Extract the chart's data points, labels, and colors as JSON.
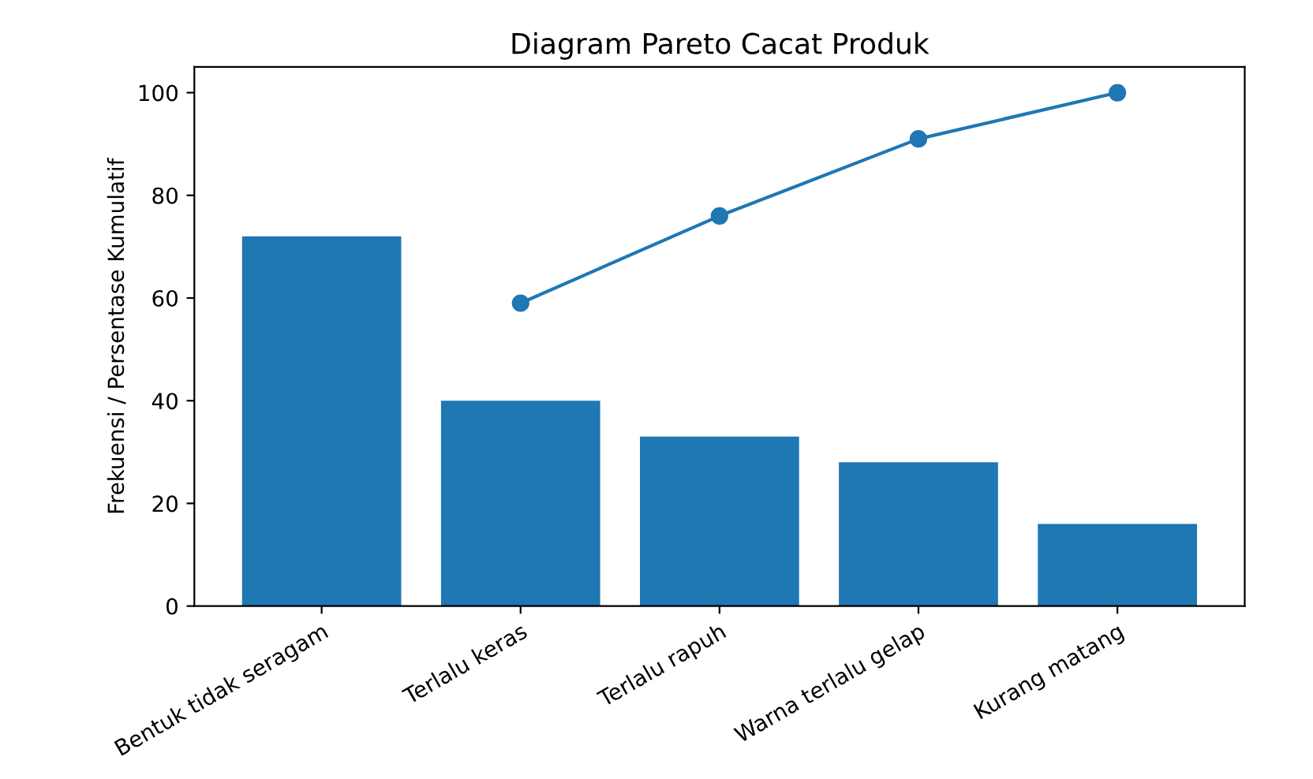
{
  "chart_data": {
    "type": "bar",
    "title": "Diagram Pareto Cacat Produk",
    "ylabel": "Frekuensi / Persentase Kumulatif",
    "categories": [
      "Bentuk tidak seragam",
      "Terlalu keras",
      "Terlalu rapuh",
      "Warna terlalu gelap",
      "Kurang matang"
    ],
    "series": [
      {
        "color": "#1f77b4",
        "values": [
          72,
          40,
          33,
          28,
          16
        ]
      },
      {
        "type": "line",
        "color": "#1f77b4",
        "marker": "circle",
        "values": [
          null,
          59,
          76,
          91,
          100
        ]
      }
    ],
    "ylim": [
      0,
      105
    ],
    "yticks": [
      0,
      20,
      40,
      60,
      80,
      100
    ],
    "grid": false,
    "legend": false
  }
}
